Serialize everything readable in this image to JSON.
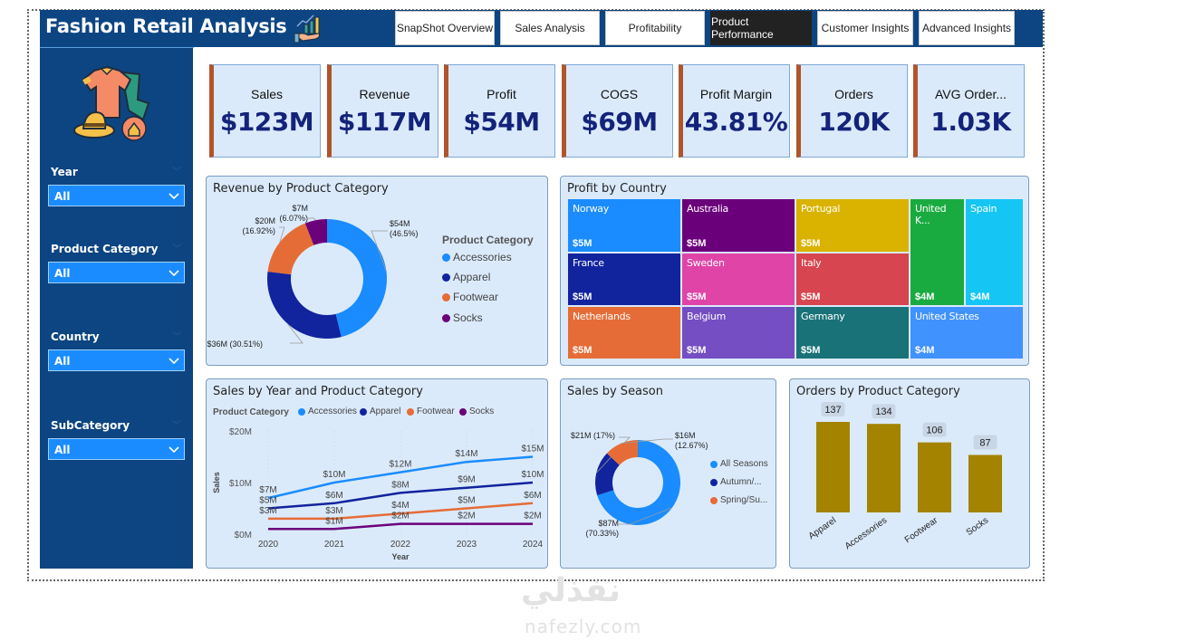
{
  "header": {
    "title": "Fashion Retail Analysis",
    "tabs": [
      {
        "label": "SnapShot Overview",
        "active": false
      },
      {
        "label": "Sales Analysis",
        "active": false
      },
      {
        "label": "Profitability",
        "active": false
      },
      {
        "label": "Product Performance",
        "active": true
      },
      {
        "label": "Customer Insights",
        "active": false
      },
      {
        "label": "Advanced Insights",
        "active": false
      }
    ]
  },
  "sidebar": {
    "slicers": [
      {
        "label": "Year",
        "value": "All"
      },
      {
        "label": "Product Category",
        "value": "All"
      },
      {
        "label": "Country",
        "value": "All"
      },
      {
        "label": "SubCategory",
        "value": "All"
      }
    ]
  },
  "kpis": [
    {
      "label": "Sales",
      "value": "$123M"
    },
    {
      "label": "Revenue",
      "value": "$117M"
    },
    {
      "label": "Profit",
      "value": "$54M"
    },
    {
      "label": "COGS",
      "value": "$69M"
    },
    {
      "label": "Profit Margin",
      "value": "43.81%"
    },
    {
      "label": "Orders",
      "value": "120K"
    },
    {
      "label": "AVG Order...",
      "value": "1.03K"
    }
  ],
  "colors": {
    "accessories": "#1a8cff",
    "apparel": "#12239e",
    "footwear": "#e66c37",
    "socks": "#6b007b",
    "bar": "#a38300",
    "kpi_accent": "#b0552a",
    "nav": "#0d4582"
  },
  "chart_data": [
    {
      "id": "revenue-by-category",
      "type": "pie",
      "title": "Revenue by Product Category",
      "legend_title": "Product Category",
      "legend_position": "right",
      "categories": [
        "Accessories",
        "Apparel",
        "Footwear",
        "Socks"
      ],
      "values": [
        54,
        36,
        20,
        7
      ],
      "percents": [
        46.5,
        30.51,
        16.92,
        6.07
      ],
      "labels": [
        "$54M\n(46.5%)",
        "$36M (30.51%)",
        "$20M\n(16.92%)",
        "$7M\n(6.07%)"
      ],
      "colors": [
        "#1a8cff",
        "#12239e",
        "#e66c37",
        "#6b007b"
      ]
    },
    {
      "id": "profit-by-country",
      "type": "heatmap",
      "subtype": "treemap",
      "title": "Profit by Country",
      "items": [
        {
          "name": "Norway",
          "label": "$5M",
          "color": "#1a8cff"
        },
        {
          "name": "France",
          "label": "$5M",
          "color": "#12239e"
        },
        {
          "name": "Netherlands",
          "label": "$5M",
          "color": "#e66c37"
        },
        {
          "name": "Australia",
          "label": "$5M",
          "color": "#6b007b"
        },
        {
          "name": "Sweden",
          "label": "$5M",
          "color": "#e044a7"
        },
        {
          "name": "Belgium",
          "label": "$5M",
          "color": "#744ec2"
        },
        {
          "name": "Portugal",
          "label": "$5M",
          "color": "#d9b300"
        },
        {
          "name": "Italy",
          "label": "$5M",
          "color": "#d64550"
        },
        {
          "name": "Germany",
          "label": "$5M",
          "color": "#197278"
        },
        {
          "name": "United K...",
          "label": "$4M",
          "color": "#1aab40"
        },
        {
          "name": "Spain",
          "label": "$4M",
          "color": "#15c6f4"
        },
        {
          "name": "United States",
          "label": "$4M",
          "color": "#4092ff"
        }
      ]
    },
    {
      "id": "sales-by-year-category",
      "type": "line",
      "title": "Sales by Year and Product Category",
      "legend_title": "Product Category",
      "legend_position": "top-left",
      "xlabel": "Year",
      "ylabel": "Sales",
      "x": [
        "2020",
        "2021",
        "2022",
        "2023",
        "2024"
      ],
      "ylim": [
        0,
        20
      ],
      "yticks": [
        "$0M",
        "$10M",
        "$20M"
      ],
      "grid": true,
      "series": [
        {
          "name": "Accessories",
          "values": [
            7,
            10,
            12,
            14,
            15
          ],
          "labels": [
            "$7M",
            "$10M",
            "$12M",
            "$14M",
            "$15M"
          ],
          "color": "#1a8cff"
        },
        {
          "name": "Apparel",
          "values": [
            5,
            6,
            8,
            9,
            10
          ],
          "labels": [
            "$5M",
            "$6M",
            "$8M",
            "$9M",
            "$10M"
          ],
          "color": "#12239e"
        },
        {
          "name": "Footwear",
          "values": [
            3,
            3,
            4,
            5,
            6
          ],
          "labels": [
            "$3M",
            "$3M",
            "$4M",
            "$5M",
            "$6M"
          ],
          "color": "#e66c37"
        },
        {
          "name": "Socks",
          "values": [
            1,
            1,
            2,
            2,
            2
          ],
          "labels": [
            "",
            "$1M",
            "$2M",
            "$2M",
            "$2M"
          ],
          "color": "#6b007b"
        }
      ]
    },
    {
      "id": "sales-by-season",
      "type": "pie",
      "title": "Sales by Season",
      "legend_position": "right",
      "categories": [
        "All Seasons",
        "Autumn/...",
        "Spring/Su..."
      ],
      "values": [
        87,
        21,
        16
      ],
      "percents": [
        70.33,
        17,
        12.67
      ],
      "labels": [
        "$87M\n(70.33%)",
        "$21M (17%)",
        "$16M\n(12.67%)"
      ],
      "colors": [
        "#1a8cff",
        "#12239e",
        "#e66c37"
      ]
    },
    {
      "id": "orders-by-category",
      "type": "bar",
      "title": "Orders by Product Category",
      "categories": [
        "Apparel",
        "Accessories",
        "Footwear",
        "Socks"
      ],
      "values": [
        137,
        134,
        106,
        87
      ],
      "xlabel": "",
      "ylabel": "",
      "ylim": [
        0,
        137
      ],
      "color": "#a38300"
    }
  ],
  "watermark": {
    "arabic": "نفذلي",
    "latin": "nafezly.com"
  }
}
